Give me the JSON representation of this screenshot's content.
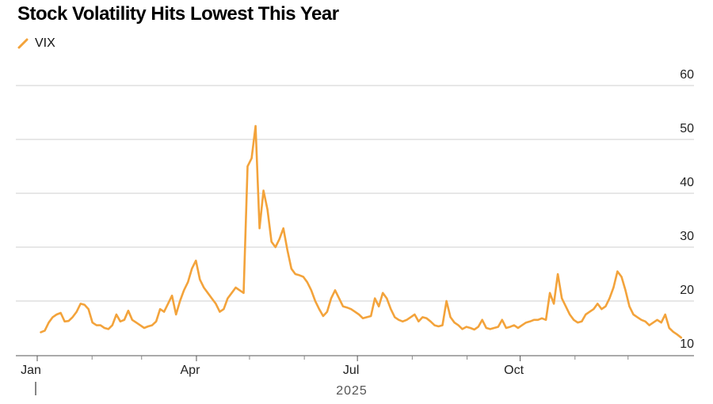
{
  "chart_data": {
    "type": "line",
    "title": "Stock Volatility Hits Lowest This Year",
    "xlabel": "2025",
    "ylabel": "",
    "ylim": [
      10,
      60
    ],
    "yticks": [
      10,
      20,
      30,
      40,
      50,
      60
    ],
    "xticks": [
      "Jan",
      "Apr",
      "Jul",
      "Oct"
    ],
    "year_label": "2025",
    "grid": true,
    "legend_position": "top-left",
    "series": [
      {
        "name": "VIX",
        "color": "#F3A33B",
        "x_day_start": 2,
        "x_day_end": 364,
        "values": [
          14.2,
          14.5,
          16.0,
          17.0,
          17.5,
          17.8,
          16.2,
          16.3,
          17.0,
          18.0,
          19.5,
          19.3,
          18.5,
          16.0,
          15.5,
          15.5,
          15.0,
          14.8,
          15.5,
          17.5,
          16.2,
          16.5,
          18.2,
          16.5,
          16.0,
          15.5,
          15.0,
          15.3,
          15.5,
          16.2,
          18.5,
          18.0,
          19.5,
          21.0,
          17.5,
          20.0,
          22.0,
          23.5,
          26.0,
          27.5,
          24.0,
          22.5,
          21.5,
          20.5,
          19.5,
          18.0,
          18.5,
          20.5,
          21.5,
          22.5,
          22.0,
          21.5,
          45.0,
          46.5,
          52.5,
          33.5,
          40.5,
          37.0,
          31.0,
          30.0,
          31.5,
          33.5,
          29.5,
          26.0,
          25.0,
          24.8,
          24.5,
          23.5,
          22.0,
          20.0,
          18.5,
          17.2,
          18.0,
          20.5,
          22.0,
          20.5,
          19.0,
          18.8,
          18.5,
          18.0,
          17.5,
          16.8,
          17.0,
          17.2,
          20.5,
          19.0,
          21.5,
          20.5,
          18.5,
          17.0,
          16.5,
          16.2,
          16.5,
          17.0,
          17.5,
          16.2,
          17.0,
          16.8,
          16.2,
          15.5,
          15.3,
          15.5,
          20.0,
          17.0,
          16.0,
          15.5,
          14.8,
          15.2,
          15.0,
          14.7,
          15.2,
          16.5,
          15.0,
          14.8,
          15.0,
          15.2,
          16.5,
          15.0,
          15.2,
          15.5,
          15.0,
          15.5,
          16.0,
          16.2,
          16.5,
          16.5,
          16.8,
          16.5,
          21.5,
          19.5,
          25.0,
          20.5,
          19.0,
          17.5,
          16.5,
          16.0,
          16.2,
          17.5,
          18.0,
          18.5,
          19.5,
          18.5,
          19.0,
          20.5,
          22.5,
          25.5,
          24.5,
          22.0,
          19.0,
          17.5,
          17.0,
          16.5,
          16.2,
          15.5,
          16.0,
          16.5,
          16.0,
          17.5,
          15.0,
          14.3,
          13.8,
          13.2
        ]
      }
    ]
  }
}
